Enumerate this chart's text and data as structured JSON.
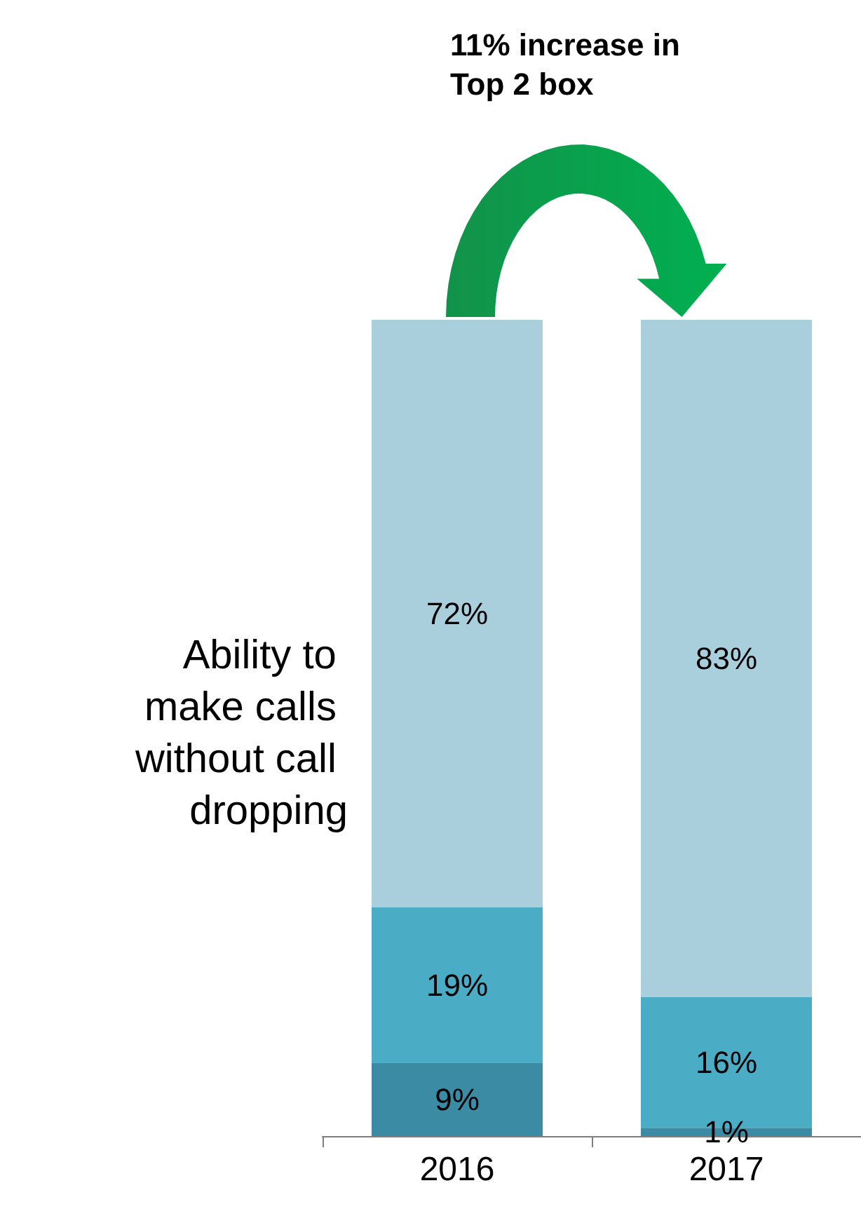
{
  "chart_data": {
    "type": "bar",
    "stacked": true,
    "categories": [
      "2016",
      "2017"
    ],
    "series": [
      {
        "color": "#3b8ba4",
        "values": [
          9,
          1
        ],
        "value_labels": [
          "9%",
          "1%"
        ]
      },
      {
        "color": "#4bacc6",
        "values": [
          19,
          16
        ],
        "value_labels": [
          "19%",
          "16%"
        ]
      },
      {
        "color": "#a9cfdd",
        "values": [
          72,
          83
        ],
        "value_labels": [
          "72%",
          "83%"
        ]
      }
    ],
    "ylabel": "Ability to make calls without call dropping",
    "annotations": [
      "11% increase in Top 2 box"
    ],
    "tick_labels": "x"
  }
}
